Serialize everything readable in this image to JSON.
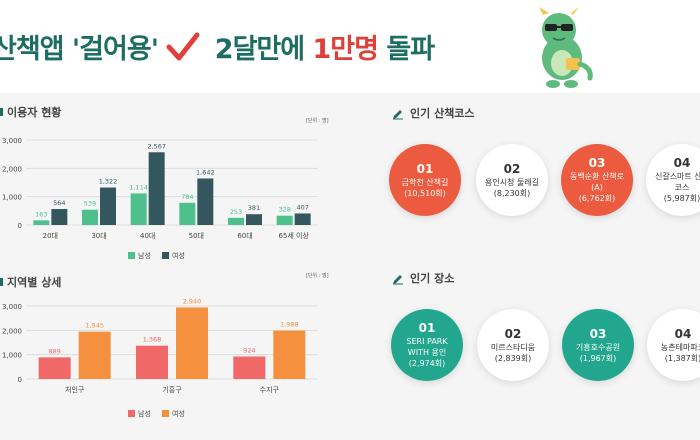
{
  "header": {
    "title_part1": "산책앱 '걸어용'",
    "title_part2": "2달만에",
    "title_highlight": "1만명",
    "title_part3": "돌파"
  },
  "colors": {
    "teal": "#1d6d62",
    "red": "#e0403a",
    "male_green": "#4dc08c",
    "female_dark": "#34575f",
    "male_red": "#f06868",
    "female_orange": "#f5913e",
    "circle_red": "#ec5b3f",
    "circle_green": "#22a78e"
  },
  "icons": {
    "check": "checkmark-icon",
    "mascot": "dragon-mascot-icon",
    "pencil": "pencil-icon"
  },
  "users_section": {
    "title": "이용자 현황",
    "unit": "[단위 : 명]"
  },
  "region_section": {
    "title": "지역별 상세",
    "unit": "[단위 : 명]"
  },
  "courses_section": {
    "title": "인기 산책코스",
    "items": [
      {
        "rank": "01",
        "name": "금학천 산책길",
        "count": "(10,510회)",
        "style": "red"
      },
      {
        "rank": "02",
        "name": "용인시청 둘레길",
        "count": "(8,230회)",
        "style": "white"
      },
      {
        "rank": "03",
        "name": "동백순환 산책로(A)",
        "count": "(6,762회)",
        "style": "red"
      },
      {
        "rank": "04",
        "name": "신갈스마트 산책코스",
        "count": "(5,987회)",
        "style": "white"
      }
    ]
  },
  "places_section": {
    "title": "인기 장소",
    "items": [
      {
        "rank": "01",
        "name": "SERI PARK WITH 용인",
        "count": "(2,974회)",
        "style": "green"
      },
      {
        "rank": "02",
        "name": "미르스타디움",
        "count": "(2,839회)",
        "style": "white"
      },
      {
        "rank": "03",
        "name": "기흥호수공원",
        "count": "(1,967회)",
        "style": "green"
      },
      {
        "rank": "04",
        "name": "농촌테마파크",
        "count": "(1,387회)",
        "style": "white"
      }
    ]
  },
  "chart_data": [
    {
      "type": "bar",
      "categories": [
        "20대",
        "30대",
        "40대",
        "50대",
        "60대",
        "65세 이상"
      ],
      "series": [
        {
          "name": "남성",
          "values": [
            163,
            539,
            1114,
            784,
            253,
            328
          ],
          "labels": [
            "163",
            "539",
            "1,114",
            "784",
            "253",
            "328"
          ]
        },
        {
          "name": "여성",
          "values": [
            564,
            1322,
            2567,
            1642,
            381,
            407
          ],
          "labels": [
            "564",
            "1,322",
            "2,567",
            "1,642",
            "381",
            "407"
          ]
        }
      ],
      "yticks": [
        "0",
        "1,000",
        "2,000",
        "3,000"
      ],
      "ylim": [
        0,
        3000
      ],
      "grid": true,
      "legend": "bottom"
    },
    {
      "type": "bar",
      "categories": [
        "처인구",
        "기흥구",
        "수지구"
      ],
      "series": [
        {
          "name": "남성",
          "values": [
            889,
            1368,
            924
          ],
          "labels": [
            "889",
            "1,368",
            "924"
          ]
        },
        {
          "name": "여성",
          "values": [
            1945,
            2940,
            1988
          ],
          "labels": [
            "1,945",
            "2,940",
            "1,988"
          ]
        }
      ],
      "yticks": [
        "0",
        "1,000",
        "2,000",
        "3,000"
      ],
      "ylim": [
        0,
        3000
      ],
      "grid": true,
      "legend": "bottom"
    }
  ]
}
